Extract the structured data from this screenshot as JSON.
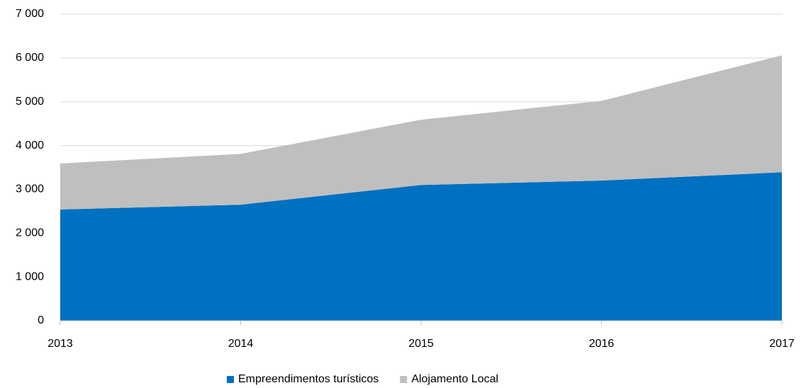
{
  "chart_data": {
    "type": "area",
    "stacked": true,
    "categories": [
      "2013",
      "2014",
      "2015",
      "2016",
      "2017"
    ],
    "series": [
      {
        "name": "Empreendimentos turísticos",
        "color": "#0070c0",
        "values": [
          2540,
          2650,
          3100,
          3200,
          3390
        ]
      },
      {
        "name": "Alojamento Local",
        "color": "#bfbfbf",
        "values": [
          1050,
          1160,
          1490,
          1820,
          2670
        ]
      }
    ],
    "ylim": [
      0,
      7000
    ],
    "yticks": [
      0,
      {
        "value": 1000,
        "label": "1 000"
      },
      {
        "value": 2000,
        "label": "2 000"
      },
      {
        "value": 3000,
        "label": "3 000"
      },
      {
        "value": 4000,
        "label": "4 000"
      },
      {
        "value": 5000,
        "label": "5 000"
      },
      {
        "value": 6000,
        "label": "6 000"
      },
      {
        "value": 7000,
        "label": "7 000"
      }
    ],
    "grid": true,
    "legend": "bottom"
  }
}
